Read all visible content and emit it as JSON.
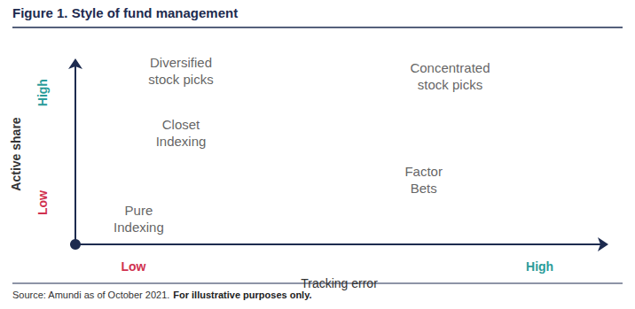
{
  "chart_data": {
    "type": "scatter",
    "title": "Figure 1. Style of fund management",
    "source": "Source: Amundi as of October 2021.",
    "note": "For illustrative purposes only.",
    "xlabel": "Tracking error",
    "ylabel": "Active share",
    "points": [
      {
        "label": "Diversified\nstock picks",
        "x": 2.0,
        "y": 9.6
      },
      {
        "label": "Closet\nIndexing",
        "x": 2.0,
        "y": 6.2
      },
      {
        "label": "Pure\nIndexing",
        "x": 1.2,
        "y": 1.4
      },
      {
        "label": "Concentrated\nstock picks",
        "x": 7.1,
        "y": 9.3
      },
      {
        "label": "Factor\nBets",
        "x": 6.6,
        "y": 3.6
      }
    ],
    "xlim": [
      0,
      10
    ],
    "ylim": [
      0,
      10
    ],
    "xticks": [
      {
        "value": 1.1,
        "label": "Low"
      },
      {
        "value": 8.8,
        "label": "High"
      }
    ],
    "yticks": [
      {
        "value": 2.3,
        "label": "Low"
      },
      {
        "value": 8.4,
        "label": "High"
      }
    ],
    "grid": false,
    "marker": "none"
  }
}
